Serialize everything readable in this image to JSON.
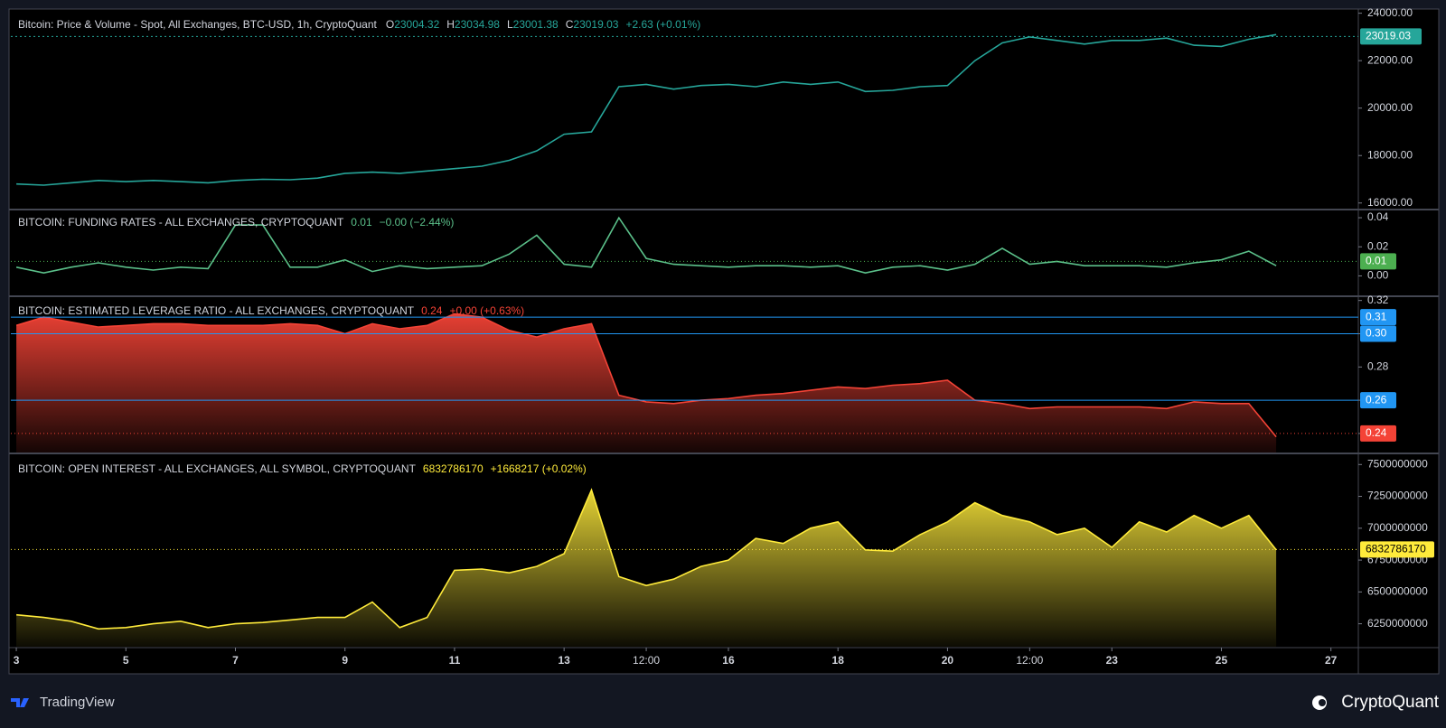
{
  "footer": {
    "left": "TradingView",
    "right": "CryptoQuant"
  },
  "chart_data": [
    {
      "type": "line",
      "title": "Bitcoin: Price & Volume - Spot, All Exchanges, BTC-USD, 1h, CryptoQuant",
      "stats": [
        {
          "label": "O",
          "value": "23004.32"
        },
        {
          "label": "H",
          "value": "23034.98"
        },
        {
          "label": "L",
          "value": "23001.38"
        },
        {
          "label": "C",
          "value": "23019.03"
        },
        {
          "value": "+2.63 (+0.01%)"
        }
      ],
      "color": "#26a69a",
      "x": [
        3,
        3.5,
        4,
        4.5,
        5,
        5.5,
        6,
        6.5,
        7,
        7.5,
        8,
        8.5,
        9,
        9.5,
        10,
        10.5,
        11,
        11.5,
        12,
        12.5,
        13,
        13.5,
        14,
        14.5,
        15,
        15.5,
        16,
        16.5,
        17,
        17.5,
        18,
        18.5,
        19,
        19.5,
        20,
        20.5,
        21,
        21.5,
        22,
        22.5,
        23,
        23.5,
        24,
        24.5,
        25,
        25.5,
        26
      ],
      "values": [
        16800,
        16750,
        16850,
        16950,
        16900,
        16950,
        16900,
        16850,
        16950,
        17000,
        16980,
        17050,
        17250,
        17300,
        17250,
        17350,
        17450,
        17550,
        17800,
        18200,
        18900,
        19000,
        20900,
        21000,
        20800,
        20950,
        21000,
        20900,
        21100,
        21000,
        21100,
        20700,
        20750,
        20900,
        20950,
        22000,
        22750,
        23000,
        22850,
        22700,
        22850,
        22850,
        22950,
        22650,
        22600,
        22900,
        23100
      ],
      "xlim": [
        2.9,
        27.5
      ],
      "ylim": [
        15800,
        24100
      ],
      "yticks": [
        {
          "value": 16000,
          "label": "16000.00"
        },
        {
          "value": 18000,
          "label": "18000.00"
        },
        {
          "value": 20000,
          "label": "20000.00"
        },
        {
          "value": 22000,
          "label": "22000.00"
        },
        {
          "value": 24000,
          "label": "24000.00"
        }
      ],
      "levels": [
        {
          "value": 23019.03,
          "color": "#26a69a",
          "style": "dashed"
        }
      ]
    },
    {
      "type": "line",
      "title": "BITCOIN: FUNDING RATES - ALL EXCHANGES, CRYPTOQUANT",
      "stats": [
        {
          "value": "0.01"
        },
        {
          "value": "−0.00 (−2.44%)"
        }
      ],
      "color": "#5bc08a",
      "x": [
        3,
        3.5,
        4,
        4.5,
        5,
        5.5,
        6,
        6.5,
        7,
        7.5,
        8,
        8.5,
        9,
        9.5,
        10,
        10.5,
        11,
        11.5,
        12,
        12.5,
        13,
        13.5,
        14,
        14.5,
        15,
        15.5,
        16,
        16.5,
        17,
        17.5,
        18,
        18.5,
        19,
        19.5,
        20,
        20.5,
        21,
        21.5,
        22,
        22.5,
        23,
        23.5,
        24,
        24.5,
        25,
        25.5,
        26
      ],
      "values": [
        0.006,
        0.002,
        0.006,
        0.009,
        0.006,
        0.004,
        0.006,
        0.005,
        0.035,
        0.035,
        0.006,
        0.006,
        0.011,
        0.003,
        0.007,
        0.005,
        0.006,
        0.007,
        0.015,
        0.028,
        0.008,
        0.006,
        0.04,
        0.012,
        0.008,
        0.007,
        0.006,
        0.007,
        0.007,
        0.006,
        0.007,
        0.002,
        0.006,
        0.007,
        0.004,
        0.008,
        0.019,
        0.008,
        0.01,
        0.007,
        0.007,
        0.007,
        0.006,
        0.009,
        0.011,
        0.017,
        0.007
      ],
      "xlim": [
        2.9,
        27.5
      ],
      "ylim": [
        -0.014,
        0.045
      ],
      "yticks": [
        {
          "value": 0,
          "label": "0.00"
        },
        {
          "value": 0.02,
          "label": "0.02"
        },
        {
          "value": 0.04,
          "label": "0.04"
        }
      ],
      "levels": [
        {
          "value": 0.01,
          "color": "#4caf50",
          "style": "dotted"
        }
      ]
    },
    {
      "type": "area",
      "title": "BITCOIN: ESTIMATED LEVERAGE RATIO - ALL EXCHANGES, CRYPTOQUANT",
      "stats": [
        {
          "value": "0.24"
        },
        {
          "value": "+0.00 (+0.63%)"
        }
      ],
      "color": "#f44336",
      "x": [
        3,
        3.5,
        4,
        4.5,
        5,
        5.5,
        6,
        6.5,
        7,
        7.5,
        8,
        8.5,
        9,
        9.5,
        10,
        10.5,
        11,
        11.5,
        12,
        12.5,
        13,
        13.5,
        14,
        14.5,
        15,
        15.5,
        16,
        16.5,
        17,
        17.5,
        18,
        18.5,
        19,
        19.5,
        20,
        20.5,
        21,
        21.5,
        22,
        22.5,
        23,
        23.5,
        24,
        24.5,
        25,
        25.5,
        26
      ],
      "values": [
        0.305,
        0.31,
        0.307,
        0.304,
        0.305,
        0.306,
        0.306,
        0.305,
        0.305,
        0.305,
        0.306,
        0.305,
        0.3,
        0.306,
        0.303,
        0.305,
        0.312,
        0.31,
        0.302,
        0.298,
        0.303,
        0.306,
        0.263,
        0.259,
        0.258,
        0.26,
        0.261,
        0.263,
        0.264,
        0.266,
        0.268,
        0.267,
        0.269,
        0.27,
        0.272,
        0.26,
        0.258,
        0.255,
        0.256,
        0.256,
        0.256,
        0.256,
        0.255,
        0.259,
        0.258,
        0.258,
        0.238
      ],
      "xlim": [
        2.9,
        27.5
      ],
      "ylim": [
        0.228,
        0.322
      ],
      "yticks": [
        {
          "value": 0.24,
          "label": "0.24"
        },
        {
          "value": 0.26,
          "label": "0.26"
        },
        {
          "value": 0.28,
          "label": "0.28"
        },
        {
          "value": 0.3,
          "label": "0.30"
        },
        {
          "value": 0.32,
          "label": "0.32"
        }
      ],
      "levels": [
        {
          "value": 0.31,
          "color": "#2196f3",
          "style": "solid"
        },
        {
          "value": 0.3,
          "label": "0.30",
          "color": "#2196f3",
          "style": "solid"
        },
        {
          "value": 0.26,
          "color": "#2196f3",
          "style": "solid"
        },
        {
          "value": 0.24,
          "color": "#f44336",
          "style": "dotted"
        }
      ]
    },
    {
      "type": "area",
      "title": "BITCOIN: OPEN INTEREST - ALL EXCHANGES, ALL SYMBOL, CRYPTOQUANT",
      "stats": [
        {
          "value": "6832786170"
        },
        {
          "value": "+1668217 (+0.02%)"
        }
      ],
      "color": "#ffeb3b",
      "x": [
        3,
        3.5,
        4,
        4.5,
        5,
        5.5,
        6,
        6.5,
        7,
        7.5,
        8,
        8.5,
        9,
        9.5,
        10,
        10.5,
        11,
        11.5,
        12,
        12.5,
        13,
        13.5,
        14,
        14.5,
        15,
        15.5,
        16,
        16.5,
        17,
        17.5,
        18,
        18.5,
        19,
        19.5,
        20,
        20.5,
        21,
        21.5,
        22,
        22.5,
        23,
        23.5,
        24,
        24.5,
        25,
        25.5,
        26
      ],
      "values": [
        6320000000,
        6300000000,
        6270000000,
        6210000000,
        6220000000,
        6250000000,
        6270000000,
        6220000000,
        6250000000,
        6260000000,
        6280000000,
        6300000000,
        6300000000,
        6420000000,
        6220000000,
        6300000000,
        6670000000,
        6680000000,
        6650000000,
        6700000000,
        6800000000,
        7300000000,
        6620000000,
        6550000000,
        6600000000,
        6700000000,
        6750000000,
        6920000000,
        6880000000,
        7000000000,
        7050000000,
        6830000000,
        6820000000,
        6950000000,
        7050000000,
        7200000000,
        7100000000,
        7050000000,
        6950000000,
        7000000000,
        6850000000,
        7050000000,
        6970000000,
        7100000000,
        7000000000,
        7100000000,
        6830000000
      ],
      "xlim": [
        2.9,
        27.5
      ],
      "ylim": [
        6070000000,
        7580000000
      ],
      "yticks": [
        6250000000,
        6500000000,
        6750000000,
        7000000000,
        7250000000,
        7500000000
      ],
      "levels": [
        {
          "value": 6832786170,
          "color": "#ffeb3b",
          "style": "dotted"
        }
      ],
      "xticks": [
        {
          "value": 3,
          "label": "3"
        },
        {
          "value": 5,
          "label": "5"
        },
        {
          "value": 7,
          "label": "7"
        },
        {
          "value": 9,
          "label": "9"
        },
        {
          "value": 11,
          "label": "11"
        },
        {
          "value": 13,
          "label": "13"
        },
        {
          "value": 14.5,
          "label": "12:00"
        },
        {
          "value": 16,
          "label": "16"
        },
        {
          "value": 18,
          "label": "18"
        },
        {
          "value": 20,
          "label": "20"
        },
        {
          "value": 21.5,
          "label": "12:00"
        },
        {
          "value": 23,
          "label": "23"
        },
        {
          "value": 25,
          "label": "25"
        },
        {
          "value": 27,
          "label": "27"
        }
      ]
    }
  ]
}
